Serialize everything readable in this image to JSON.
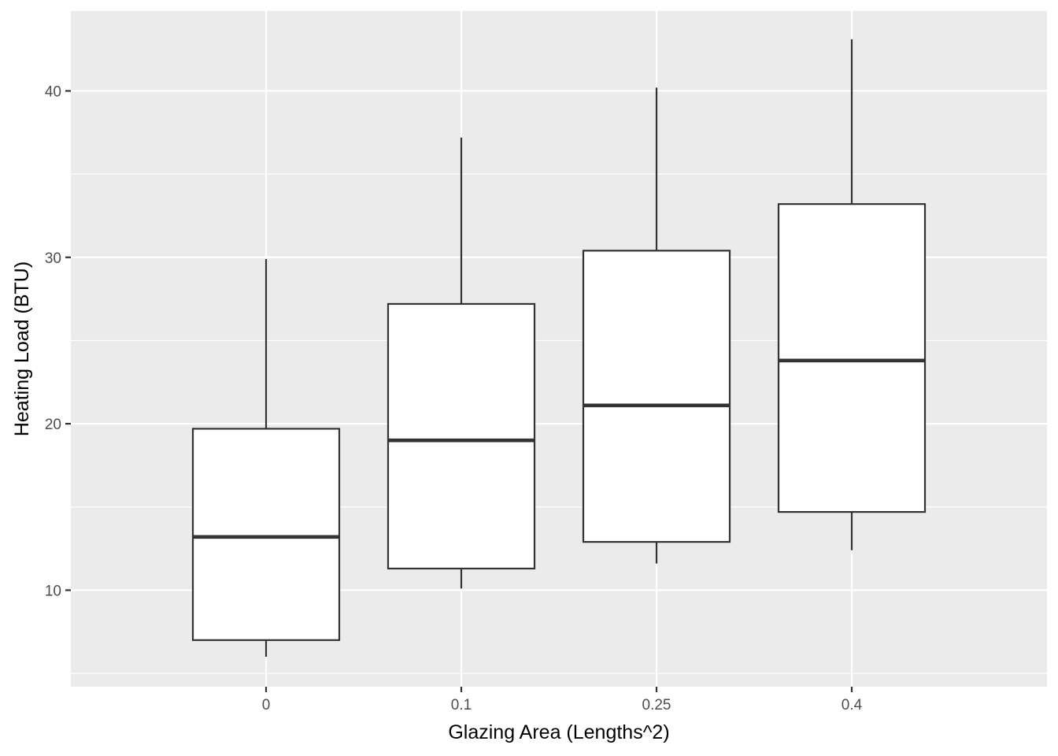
{
  "chart_data": {
    "type": "boxplot",
    "title": "",
    "xlabel": "Glazing Area (Lengths^2)",
    "ylabel": "Heating Load (BTU)",
    "categories": [
      "0",
      "0.1",
      "0.25",
      "0.4"
    ],
    "boxes": [
      {
        "category": "0",
        "min": 6.0,
        "q1": 7.0,
        "median": 13.2,
        "q3": 19.7,
        "max": 29.9
      },
      {
        "category": "0.1",
        "min": 10.1,
        "q1": 11.3,
        "median": 19.0,
        "q3": 27.2,
        "max": 37.2
      },
      {
        "category": "0.25",
        "min": 11.6,
        "q1": 12.9,
        "median": 21.1,
        "q3": 30.4,
        "max": 40.2
      },
      {
        "category": "0.4",
        "min": 12.4,
        "q1": 14.7,
        "median": 23.8,
        "q3": 33.2,
        "max": 43.1
      }
    ],
    "ylim": [
      4.2,
      44.8
    ],
    "yticks": [
      10,
      20,
      30,
      40
    ],
    "ytick_labels": [
      "10",
      "20",
      "30",
      "40"
    ],
    "grid": true,
    "legend": "none",
    "colors": {
      "panel": "#ebebeb",
      "grid": "#ffffff",
      "box_fill": "#ffffff",
      "box_stroke": "#333333",
      "tick_text": "#4d4d4d",
      "axis_title": "#000000"
    }
  }
}
